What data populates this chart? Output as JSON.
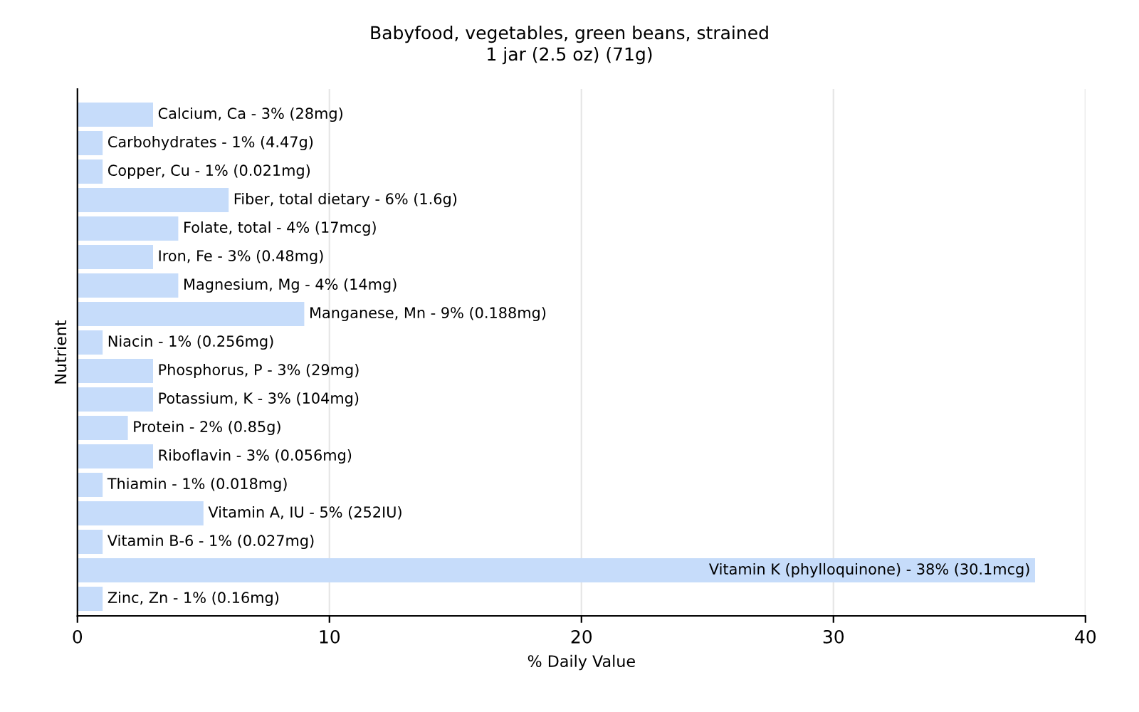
{
  "chart_data": {
    "type": "bar",
    "orientation": "horizontal",
    "title": "Babyfood, vegetables, green beans, strained",
    "subtitle": "1 jar (2.5 oz) (71g)",
    "xlabel": "% Daily Value",
    "ylabel": "Nutrient",
    "categories": [
      "Calcium, Ca - 3% (28mg)",
      "Carbohydrates - 1% (4.47g)",
      "Copper, Cu - 1% (0.021mg)",
      "Fiber, total dietary - 6% (1.6g)",
      "Folate, total - 4% (17mcg)",
      "Iron, Fe - 3% (0.48mg)",
      "Magnesium, Mg - 4% (14mg)",
      "Manganese, Mn - 9% (0.188mg)",
      "Niacin - 1% (0.256mg)",
      "Phosphorus, P - 3% (29mg)",
      "Potassium, K - 3% (104mg)",
      "Protein - 2% (0.85g)",
      "Riboflavin - 3% (0.056mg)",
      "Thiamin - 1% (0.018mg)",
      "Vitamin A, IU - 5% (252IU)",
      "Vitamin B-6 - 1% (0.027mg)",
      "Vitamin K (phylloquinone) - 38% (30.1mcg)",
      "Zinc, Zn - 1% (0.16mg)"
    ],
    "values": [
      3,
      1,
      1,
      6,
      4,
      3,
      4,
      9,
      1,
      3,
      3,
      2,
      3,
      1,
      5,
      1,
      38,
      1
    ],
    "color": "#c6dcfa",
    "xlim": [
      0,
      40
    ],
    "xticks": [
      0,
      10,
      20,
      30,
      40
    ],
    "grid": "x",
    "tick_labels": "x"
  }
}
